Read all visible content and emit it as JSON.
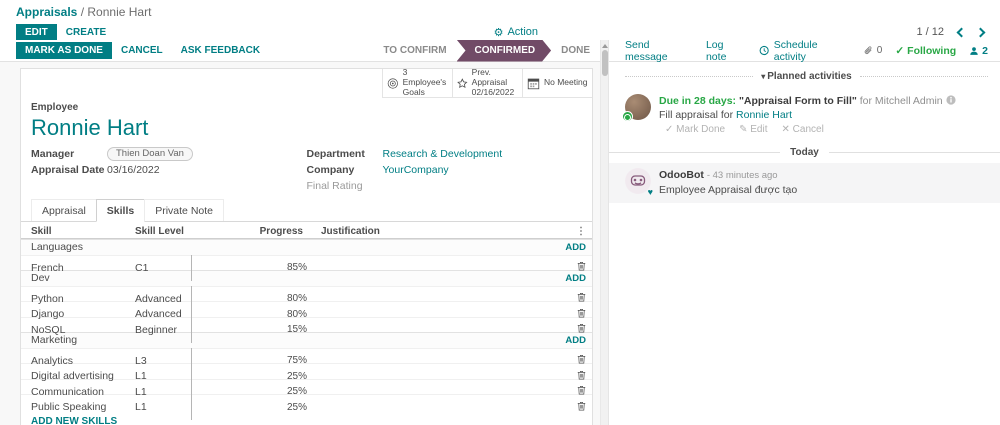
{
  "colors": {
    "teal": "#017e84",
    "status_purple": "#714b67",
    "success_green": "#28a745"
  },
  "breadcrumb": {
    "root": "Appraisals",
    "separator": "/",
    "current": "Ronnie Hart"
  },
  "topbar": {
    "edit": "EDIT",
    "create": "CREATE",
    "action": "Action",
    "pager": "1 / 12"
  },
  "statusbar": {
    "mark_as_done": "MARK AS DONE",
    "cancel": "CANCEL",
    "ask_feedback": "ASK FEEDBACK",
    "states": [
      {
        "label": "TO CONFIRM",
        "active": false
      },
      {
        "label": "CONFIRMED",
        "active": true
      },
      {
        "label": "DONE",
        "active": false
      }
    ]
  },
  "stat_buttons": [
    {
      "icon": "goals-icon",
      "line1": "3 Employee's",
      "line2": "Goals"
    },
    {
      "icon": "prev-appraisal-icon",
      "line1": "Prev. Appraisal",
      "line2": "02/16/2022"
    },
    {
      "icon": "calendar-icon",
      "line1": "No Meeting",
      "line2": ""
    }
  ],
  "form": {
    "employee_label": "Employee",
    "employee_name": "Ronnie Hart",
    "manager_label": "Manager",
    "manager_value": "Thien Doan Van",
    "appraisal_date_label": "Appraisal Date",
    "appraisal_date_value": "03/16/2022",
    "department_label": "Department",
    "department_value": "Research & Development",
    "company_label": "Company",
    "company_value": "YourCompany",
    "final_rating_label": "Final Rating",
    "final_rating_value": ""
  },
  "tabs": [
    {
      "label": "Appraisal",
      "active": false
    },
    {
      "label": "Skills",
      "active": true
    },
    {
      "label": "Private Note",
      "active": false
    }
  ],
  "skills": {
    "headers": [
      "Skill",
      "Skill Level",
      "Progress",
      "Justification"
    ],
    "add_label": "ADD",
    "footer_link": "ADD NEW SKILLS",
    "sections": [
      {
        "name": "Languages",
        "rows": [
          {
            "skill": "French",
            "level": "C1",
            "progress": 85,
            "progress_label": "85%"
          }
        ]
      },
      {
        "name": "Dev",
        "rows": [
          {
            "skill": "Python",
            "level": "Advanced",
            "progress": 80,
            "progress_label": "80%"
          },
          {
            "skill": "Django",
            "level": "Advanced",
            "progress": 80,
            "progress_label": "80%"
          },
          {
            "skill": "NoSQL",
            "level": "Beginner",
            "progress": 15,
            "progress_label": "15%"
          }
        ]
      },
      {
        "name": "Marketing",
        "rows": [
          {
            "skill": "Analytics",
            "level": "L3",
            "progress": 75,
            "progress_label": "75%"
          },
          {
            "skill": "Digital advertising",
            "level": "L1",
            "progress": 25,
            "progress_label": "25%"
          },
          {
            "skill": "Communication",
            "level": "L1",
            "progress": 25,
            "progress_label": "25%"
          },
          {
            "skill": "Public Speaking",
            "level": "L1",
            "progress": 25,
            "progress_label": "25%"
          }
        ]
      }
    ]
  },
  "chatter": {
    "send_message": "Send message",
    "log_note": "Log note",
    "schedule_activity": "Schedule activity",
    "attachment_count": "0",
    "following": "Following",
    "follower_count": "2",
    "planned_header": "Planned activities",
    "activity": {
      "due": "Due in 28 days:",
      "title": "\"Appraisal Form to Fill\"",
      "for_text": "for Mitchell Admin",
      "summary_prefix": "Fill appraisal for",
      "summary_link": "Ronnie Hart",
      "mark_done": "Mark Done",
      "edit": "Edit",
      "cancel": "Cancel"
    },
    "today": "Today",
    "message": {
      "author": "OdooBot",
      "time": "- 43 minutes ago",
      "body": "Employee Appraisal được tạo"
    }
  },
  "icons": {
    "gear": "⚙",
    "kebab": "⋮",
    "caret_down": "▾",
    "check": "✓",
    "pencil": "✎",
    "cross": "✕",
    "heart": "♥"
  }
}
